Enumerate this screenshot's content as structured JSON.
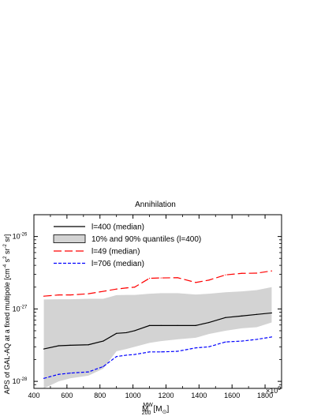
{
  "chart_data": {
    "type": "line",
    "title": "Annihilation",
    "xlabel": "M",
    "xlabel_sup": "MW",
    "xlabel_sub": "200",
    "xlabel_unit_open": "[M",
    "xlabel_unit_sub": "⊙",
    "xlabel_unit_close": "]",
    "x_multiplier": "×10",
    "x_multiplier_exp": "9",
    "ylabel_main": "APS of GAL-AQ at a fixed multipole [cm",
    "ylabel_exp1": "-4",
    "ylabel_mid1": " s",
    "ylabel_exp2": "2",
    "ylabel_mid2": " sr",
    "ylabel_exp3": "-2",
    "ylabel_mid3": " sr]",
    "xlim": [
      400,
      1900
    ],
    "ylim": [
      8e-29,
      2e-26
    ],
    "yscale": "log",
    "x_ticks": [
      400,
      600,
      800,
      1000,
      1200,
      1400,
      1600,
      1800
    ],
    "y_ticks": [
      {
        "value": 1e-28,
        "base": "10",
        "exp": "-28"
      },
      {
        "value": 1e-27,
        "base": "10",
        "exp": "-27"
      },
      {
        "value": 1e-26,
        "base": "10",
        "exp": "-26"
      }
    ],
    "legend_position": "top-left",
    "x": [
      460,
      550,
      620,
      730,
      820,
      900,
      960,
      1010,
      1100,
      1170,
      1270,
      1380,
      1460,
      1560,
      1660,
      1750,
      1840
    ],
    "band": {
      "name": "10% and 90% quantiles (l=400)",
      "color": "#d3d3d3",
      "lower": [
        8e-29,
        1e-28,
        1.1e-28,
        1.2e-28,
        1.5e-28,
        2.6e-28,
        2.8e-28,
        3e-28,
        3.4e-28,
        3.6e-28,
        3.8e-28,
        4e-28,
        4.5e-28,
        5e-28,
        5.4e-28,
        5.6e-28,
        6.5e-28
      ],
      "upper": [
        1.35e-27,
        1.36e-27,
        1.36e-27,
        1.38e-27,
        1.38e-27,
        1.55e-27,
        1.56e-27,
        1.56e-27,
        1.62e-27,
        1.65e-27,
        1.65e-27,
        1.58e-27,
        1.62e-27,
        1.7e-27,
        1.75e-27,
        1.82e-27,
        2e-27
      ]
    },
    "series": [
      {
        "name": "l=400 (median)",
        "color": "#000000",
        "style": "solid",
        "values": [
          2.8e-28,
          3.1e-28,
          3.15e-28,
          3.2e-28,
          3.6e-28,
          4.6e-28,
          4.7e-28,
          5e-28,
          5.9e-28,
          5.9e-28,
          5.9e-28,
          5.9e-28,
          6.5e-28,
          7.6e-28,
          8e-28,
          8.4e-28,
          8.8e-28
        ]
      },
      {
        "name": "l=49 (median)",
        "color": "#ff0000",
        "style": "longdash",
        "values": [
          1.5e-27,
          1.56e-27,
          1.56e-27,
          1.62e-27,
          1.75e-27,
          1.88e-27,
          1.95e-27,
          2e-27,
          2.65e-27,
          2.68e-27,
          2.7e-27,
          2.32e-27,
          2.5e-27,
          2.95e-27,
          3.1e-27,
          3.12e-27,
          3.35e-27
        ]
      },
      {
        "name": "l=706 (median)",
        "color": "#0000ff",
        "style": "shortdash",
        "values": [
          1.1e-28,
          1.25e-28,
          1.3e-28,
          1.35e-28,
          1.6e-28,
          2.2e-28,
          2.3e-28,
          2.35e-28,
          2.55e-28,
          2.55e-28,
          2.6e-28,
          2.9e-28,
          3e-28,
          3.5e-28,
          3.6e-28,
          3.8e-28,
          4.1e-28
        ]
      }
    ],
    "legend": [
      {
        "label": "l=400 (median)",
        "kind": "line",
        "series": 0
      },
      {
        "label": "10% and 90% quantiles (l=400)",
        "kind": "band"
      },
      {
        "label": "l=49 (median)",
        "kind": "line",
        "series": 1
      },
      {
        "label": "l=706 (median)",
        "kind": "line",
        "series": 2
      }
    ]
  }
}
